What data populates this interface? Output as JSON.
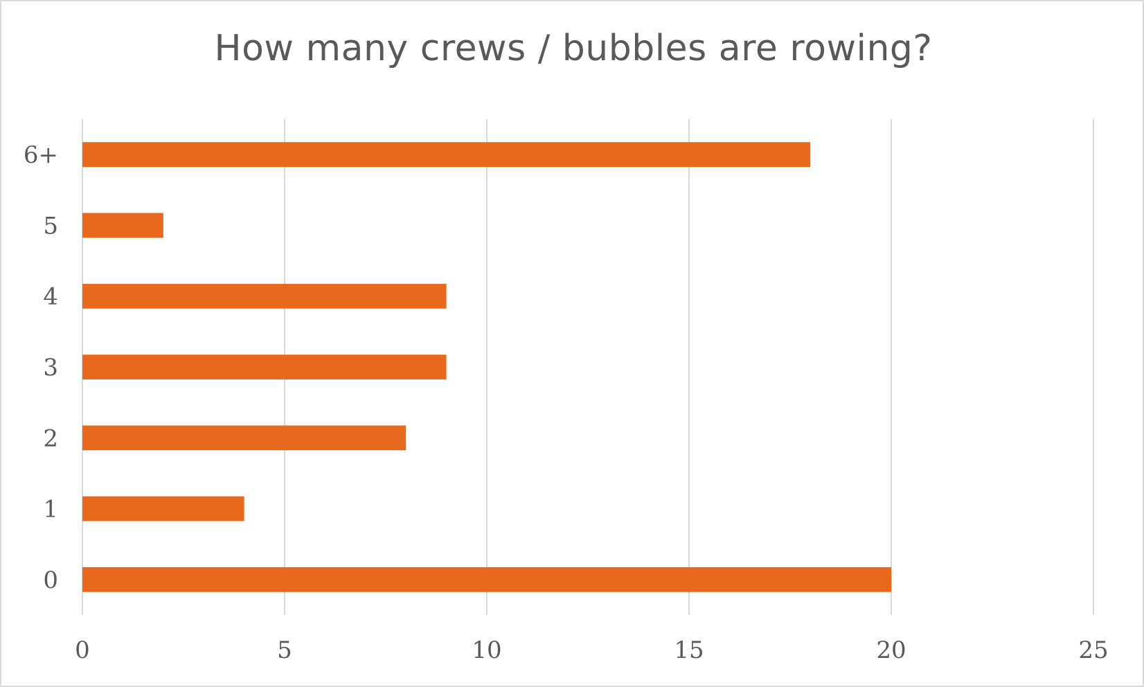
{
  "chart_data": {
    "type": "bar",
    "orientation": "horizontal",
    "title": "How many crews / bubbles are rowing?",
    "categories": [
      "0",
      "1",
      "2",
      "3",
      "4",
      "5",
      "6+"
    ],
    "values": [
      20,
      4,
      8,
      9,
      9,
      2,
      18
    ],
    "xlabel": "",
    "ylabel": "",
    "xlim": [
      0,
      25
    ],
    "x_ticks": [
      "0",
      "5",
      "10",
      "15",
      "20",
      "25"
    ],
    "x_tick_values": [
      0,
      5,
      10,
      15,
      20,
      25
    ],
    "grid": "vertical",
    "legend": "none",
    "bar_color": "#E8691E",
    "grid_color": "#d9d9d9",
    "text_color": "#595959"
  }
}
